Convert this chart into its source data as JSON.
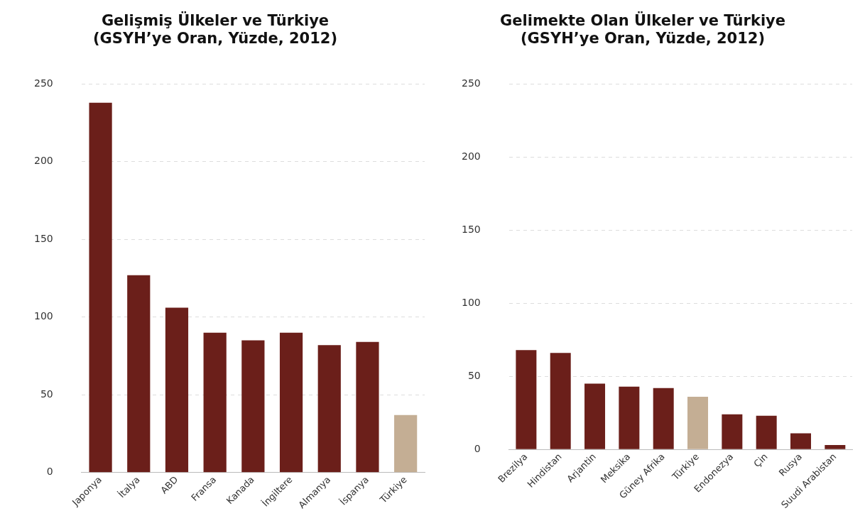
{
  "chart_data": [
    {
      "type": "bar",
      "title": "Gelişmiş Ülkeler ve Türkiye\n(GSYH’ye Oran, Yüzde, 2012)",
      "categories": [
        "Japonya",
        "İtalya",
        "ABD",
        "Fransa",
        "Kanada",
        "İngiltere",
        "Almanya",
        "İspanya",
        "Türkiye"
      ],
      "values": [
        238,
        127,
        106,
        90,
        85,
        90,
        82,
        84,
        37
      ],
      "colors": [
        "#6b1f1a",
        "#6b1f1a",
        "#6b1f1a",
        "#6b1f1a",
        "#6b1f1a",
        "#6b1f1a",
        "#6b1f1a",
        "#6b1f1a",
        "#c4ae94"
      ],
      "ylim": [
        0,
        250
      ],
      "yticks": [
        0,
        50,
        100,
        150,
        200,
        250
      ],
      "grid": "y",
      "legend": false
    },
    {
      "type": "bar",
      "title": "Gelimekte Olan Ülkeler ve Türkiye\n(GSYH’ye Oran, Yüzde, 2012)",
      "categories": [
        "Brezilya",
        "Hindistan",
        "Arjantin",
        "Meksika",
        "Güney Afrika",
        "Türkiye",
        "Endonezya",
        "Çin",
        "Rusya",
        "Suudi Arabistan"
      ],
      "values": [
        68,
        66,
        45,
        43,
        42,
        36,
        24,
        23,
        11,
        3
      ],
      "colors": [
        "#6b1f1a",
        "#6b1f1a",
        "#6b1f1a",
        "#6b1f1a",
        "#6b1f1a",
        "#c4ae94",
        "#6b1f1a",
        "#6b1f1a",
        "#6b1f1a",
        "#6b1f1a"
      ],
      "ylim": [
        0,
        250
      ],
      "yticks": [
        0,
        50,
        100,
        150,
        200,
        250
      ],
      "grid": "y",
      "legend": false
    }
  ]
}
